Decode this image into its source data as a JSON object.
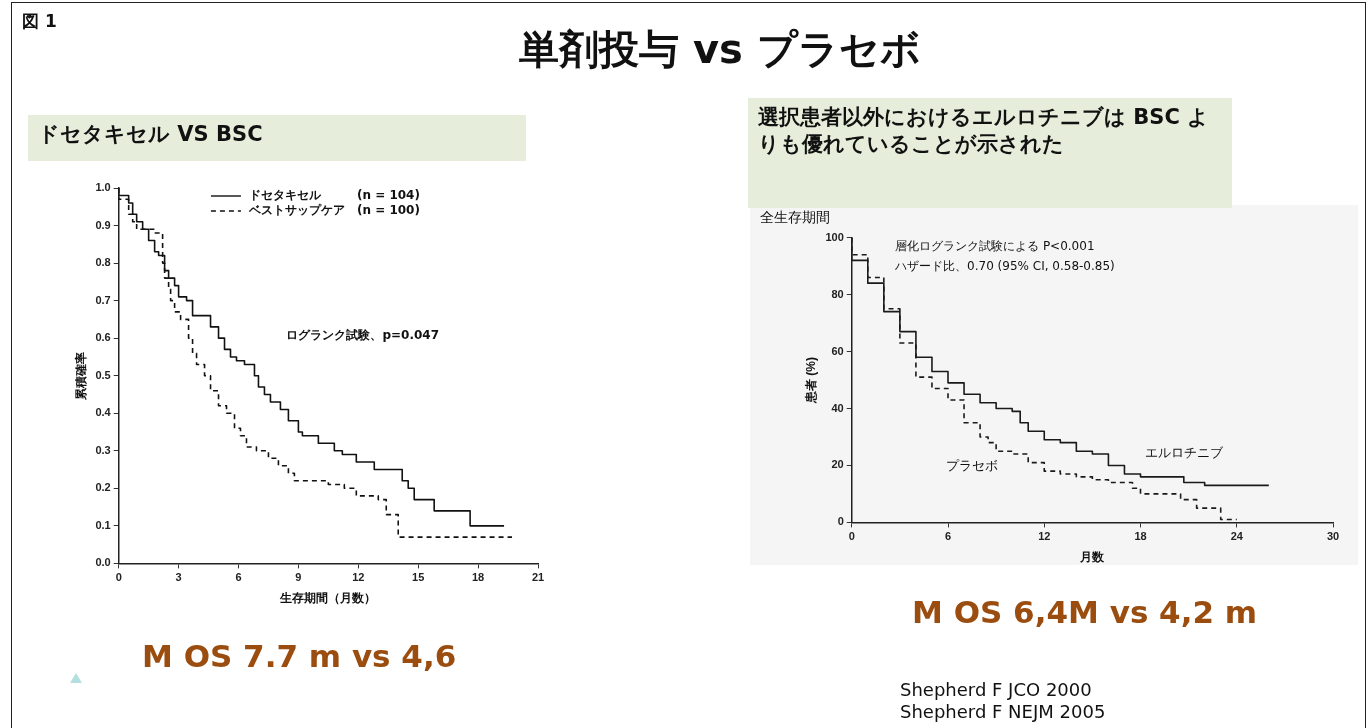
{
  "chart_data": [
    {
      "type": "step",
      "title": "ドセタキセル VS BSC",
      "xlabel": "生存期間（月数）",
      "ylabel": "累積確率",
      "xlim": [
        0,
        21
      ],
      "xticks": [
        0,
        3,
        6,
        9,
        12,
        15,
        18,
        21
      ],
      "ylim": [
        0,
        1
      ],
      "yticks": [
        {
          "value": 0,
          "label": "0.0"
        },
        0.1,
        0.2,
        0.3,
        0.4,
        0.5,
        0.6,
        0.7,
        0.8,
        0.9,
        {
          "value": 1,
          "label": "1.0"
        }
      ],
      "grid": false,
      "legend": "top",
      "marker": "none",
      "series": [
        {
          "name": "ドセタキセル　　　(n = 104)",
          "color": "#111111",
          "line_style": "solid",
          "x": [
            0,
            0.5,
            0.7,
            0.9,
            1.2,
            1.5,
            1.8,
            2.0,
            2.3,
            2.5,
            2.8,
            3.0,
            3.4,
            3.7,
            4.6,
            5.0,
            5.3,
            5.6,
            5.9,
            6.3,
            6.8,
            7.0,
            7.3,
            7.6,
            8.1,
            8.5,
            9.0,
            9.2,
            10.0,
            10.8,
            11.2,
            11.9,
            12.8,
            14.2,
            14.5,
            14.8,
            15.8,
            17.6,
            19.3
          ],
          "values": [
            1.0,
            0.98,
            0.96,
            0.93,
            0.91,
            0.89,
            0.86,
            0.83,
            0.82,
            0.78,
            0.76,
            0.74,
            0.71,
            0.7,
            0.66,
            0.63,
            0.6,
            0.57,
            0.55,
            0.54,
            0.53,
            0.5,
            0.47,
            0.45,
            0.43,
            0.41,
            0.38,
            0.35,
            0.34,
            0.32,
            0.3,
            0.29,
            0.27,
            0.25,
            0.22,
            0.2,
            0.17,
            0.14,
            0.1
          ]
        },
        {
          "name": "ベストサップケア　(n = 100)",
          "color": "#111111",
          "line_style": "dashed",
          "x": [
            0,
            0.5,
            0.7,
            0.9,
            1.8,
            2.2,
            2.3,
            2.5,
            2.6,
            2.8,
            3.1,
            3.5,
            3.7,
            3.9,
            4.3,
            4.6,
            5.0,
            5.4,
            5.8,
            6.1,
            6.4,
            6.9,
            7.5,
            8.0,
            8.5,
            8.8,
            10.5,
            11.3,
            11.9,
            13.0,
            13.4,
            14.0,
            19.7
          ],
          "values": [
            1.0,
            0.97,
            0.93,
            0.91,
            0.89,
            0.88,
            0.8,
            0.76,
            0.73,
            0.7,
            0.67,
            0.65,
            0.6,
            0.56,
            0.53,
            0.5,
            0.46,
            0.42,
            0.4,
            0.36,
            0.34,
            0.31,
            0.3,
            0.28,
            0.26,
            0.24,
            0.22,
            0.21,
            0.2,
            0.18,
            0.17,
            0.13,
            0.07
          ]
        }
      ],
      "annotations": [
        "図 1",
        "単剤投与 vs プラセボ",
        "ログランク試験、p=0.047",
        "M OS 7.7 m vs 4,6"
      ]
    },
    {
      "type": "step",
      "title": "選択患者以外におけるエルロチニブは BSC よりも優れていることが示された",
      "subtitle": "全生存期間",
      "xlabel": "月数",
      "ylabel": "患者 (%)",
      "xlim": [
        0,
        30
      ],
      "xticks": [
        0,
        6,
        12,
        18,
        24,
        30
      ],
      "ylim": [
        0,
        100
      ],
      "yticks": [
        0,
        20,
        40,
        60,
        80,
        100
      ],
      "grid": false,
      "legend": false,
      "marker": "none",
      "series": [
        {
          "name": "エルロチニブ",
          "color": "#1a1a1a",
          "line_style": "solid",
          "x": [
            0,
            1,
            2,
            3,
            4,
            5,
            6,
            7,
            8,
            9,
            10,
            10.5,
            11,
            12,
            13,
            14,
            15,
            16,
            17,
            18,
            20.7,
            22,
            26
          ],
          "values": [
            100,
            92,
            84,
            74,
            67,
            58,
            53,
            49,
            45,
            42,
            40,
            39,
            35,
            32,
            29,
            28,
            25,
            24,
            20,
            17,
            16,
            14,
            13
          ]
        },
        {
          "name": "プラセボ",
          "color": "#1a1a1a",
          "line_style": "dashed",
          "x": [
            0,
            1,
            2,
            3,
            4,
            5,
            6,
            7,
            8,
            8.5,
            9,
            10,
            11,
            12,
            13,
            14,
            15,
            16,
            17.5,
            18,
            20.5,
            21.5,
            23,
            24
          ],
          "values": [
            100,
            94,
            86,
            75,
            63,
            51,
            47,
            43,
            35,
            30,
            28,
            25,
            24,
            21,
            18,
            17,
            16,
            15,
            14,
            12,
            10,
            8,
            5,
            1
          ]
        }
      ],
      "annotations": [
        "層化ログランク試験による P<0.001",
        "ハザード比、0.70 (95% CI, 0.58-0.85)",
        "M OS 6,4M vs 4,2 m",
        "Shepherd F JCO 2000",
        "Shepherd F NEJM 2005"
      ]
    }
  ]
}
